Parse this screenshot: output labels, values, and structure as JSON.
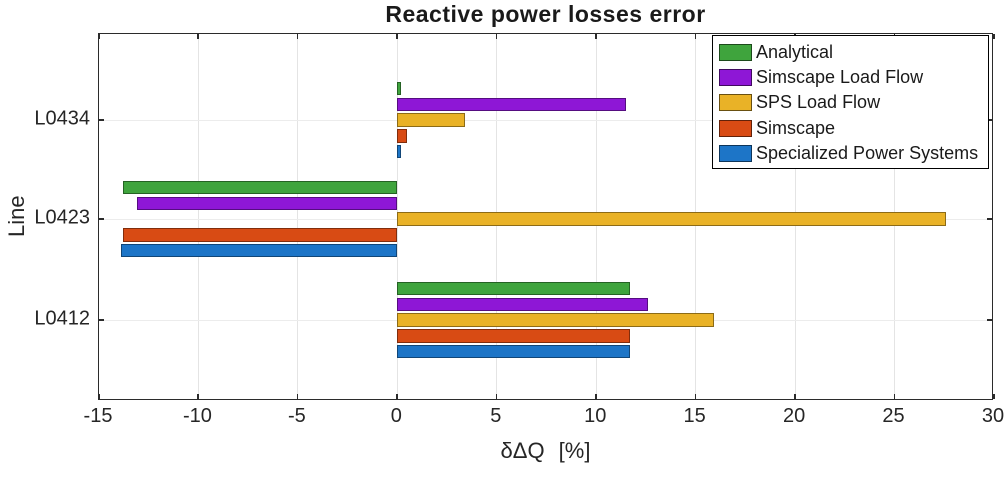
{
  "title": "Reactive power losses error",
  "axes": {
    "xlabel": "δΔQ  [%]",
    "ylabel": "Line",
    "x_tick_labels": [
      "-15",
      "-10",
      "-5",
      "0",
      "5",
      "10",
      "15",
      "20",
      "25",
      "30"
    ]
  },
  "chart_data": {
    "type": "bar",
    "orientation": "horizontal",
    "title": "Reactive power losses error",
    "xlabel": "δΔQ  [%]",
    "ylabel": "Line",
    "xlim": [
      -15,
      30
    ],
    "x_ticks": [
      -15,
      -10,
      -5,
      0,
      5,
      10,
      15,
      20,
      25,
      30
    ],
    "grid": true,
    "legend_position": "top-right-inside",
    "categories_top_to_bottom": [
      "L0434",
      "L0423",
      "L0412"
    ],
    "series": [
      {
        "name": "Analytical",
        "color": "#3FA43D",
        "values": [
          0.2,
          -13.8,
          11.7
        ]
      },
      {
        "name": "Simscape Load Flow",
        "color": "#8E17D6",
        "values": [
          11.5,
          -13.1,
          12.6
        ]
      },
      {
        "name": "SPS Load Flow",
        "color": "#E9B227",
        "values": [
          3.4,
          27.6,
          15.9
        ]
      },
      {
        "name": "Simscape",
        "color": "#D84B14",
        "values": [
          0.5,
          -13.8,
          11.7
        ]
      },
      {
        "name": "Specialized Power Systems",
        "color": "#1D75C7",
        "values": [
          0.2,
          -13.9,
          11.7
        ]
      }
    ]
  },
  "colors": {
    "axis": "#2b2b2b",
    "grid": "#e4e4e4",
    "text": "#262626",
    "background": "#ffffff"
  }
}
